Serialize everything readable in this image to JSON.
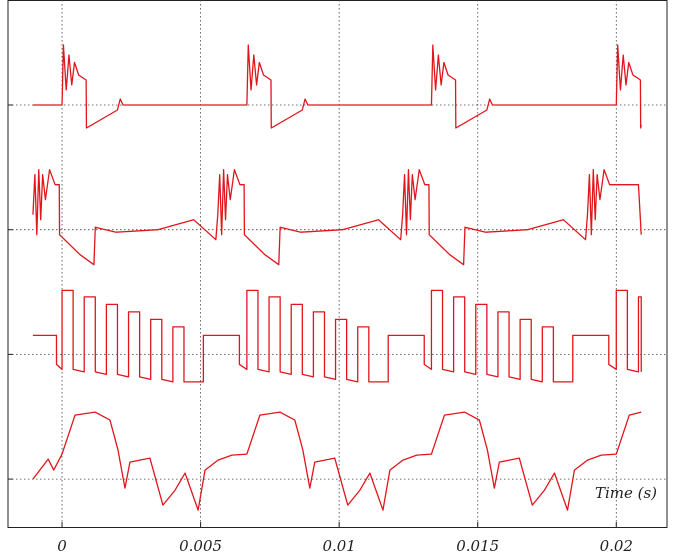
{
  "chart_data": [
    {
      "type": "line",
      "color": "#e0161c",
      "xlim": [
        -0.00195,
        0.02183
      ],
      "ylim": [
        -1.25,
        1.25
      ],
      "yticks": [
        0
      ],
      "grid": true,
      "x": [
        -0.00105,
        0,
        5e-05,
        0.00015,
        0.00025,
        0.00035,
        0.00045,
        0.0006,
        0.00087,
        0.00088,
        0.002,
        0.0021,
        0.0022,
        0.00667,
        0.00672,
        0.00682,
        0.00692,
        0.00702,
        0.00712,
        0.00727,
        0.00754,
        0.00755,
        0.00867,
        0.00877,
        0.00887,
        0.01333,
        0.01338,
        0.01348,
        0.01358,
        0.01368,
        0.01378,
        0.01393,
        0.0142,
        0.01421,
        0.01533,
        0.01543,
        0.01553,
        0.02,
        0.02005,
        0.02015,
        0.02025,
        0.02035,
        0.02045,
        0.0206,
        0.02087,
        0.02088,
        0.0209
      ],
      "values": [
        0,
        0,
        1.2,
        0.3,
        1.0,
        0.4,
        0.85,
        0.6,
        0.5,
        -0.46,
        -0.1,
        0.12,
        0,
        0,
        1.2,
        0.3,
        1.0,
        0.4,
        0.85,
        0.6,
        0.5,
        -0.46,
        -0.1,
        0.12,
        0,
        0,
        1.2,
        0.3,
        1.0,
        0.4,
        0.85,
        0.6,
        0.5,
        -0.46,
        -0.1,
        0.12,
        0,
        0,
        1.2,
        0.3,
        1.0,
        0.4,
        0.85,
        0.6,
        0.5,
        -0.46,
        -0.4
      ]
    },
    {
      "type": "line",
      "color": "#e0161c",
      "xlim": [
        -0.00195,
        0.02183
      ],
      "ylim": [
        -1.25,
        1.25
      ],
      "yticks": [
        0
      ],
      "grid": true,
      "x": [
        -0.00105,
        -0.00098,
        -0.00091,
        -0.00084,
        -0.00077,
        -0.0007,
        -0.0006,
        -0.00045,
        -0.00025,
        -0.0001,
        -9e-05,
        0.00065,
        0.00115,
        0.0012,
        0.00195,
        0.00345,
        0.00475,
        0.00555,
        0.00562,
        0.00569,
        0.00576,
        0.00583,
        0.0059,
        0.00597,
        0.00607,
        0.00622,
        0.00642,
        0.00657,
        0.00658,
        0.00732,
        0.00782,
        0.00787,
        0.00862,
        0.01012,
        0.01142,
        0.01222,
        0.01229,
        0.01236,
        0.01243,
        0.0125,
        0.01257,
        0.01264,
        0.01274,
        0.01289,
        0.01309,
        0.01324,
        0.01325,
        0.01399,
        0.01449,
        0.01454,
        0.01529,
        0.01679,
        0.01809,
        0.01889,
        0.01896,
        0.01903,
        0.0191,
        0.01917,
        0.01924,
        0.01931,
        0.01941,
        0.01956,
        0.01976,
        0.01991,
        0.0208,
        0.0209
      ],
      "values": [
        0.3,
        1.1,
        -0.1,
        1.2,
        0.2,
        1.1,
        0.6,
        1.2,
        0.9,
        0.9,
        -0.1,
        -0.5,
        -0.7,
        0.05,
        -0.05,
        0,
        0.2,
        -0.2,
        0.3,
        1.1,
        -0.1,
        1.2,
        0.2,
        1.1,
        0.6,
        1.2,
        0.9,
        0.9,
        -0.1,
        -0.5,
        -0.7,
        0.05,
        -0.05,
        0,
        0.2,
        -0.2,
        0.3,
        1.1,
        -0.1,
        1.2,
        0.2,
        1.1,
        0.6,
        1.2,
        0.9,
        0.9,
        -0.1,
        -0.5,
        -0.7,
        0.05,
        -0.05,
        0,
        0.2,
        -0.2,
        0.3,
        1.1,
        -0.1,
        1.2,
        0.2,
        1.1,
        0.6,
        1.2,
        0.9,
        0.9,
        0.9,
        -0.1
      ]
    },
    {
      "type": "line",
      "color": "#e0161c",
      "xlim": [
        -0.00195,
        0.02183
      ],
      "ylim": [
        -1.25,
        1.25
      ],
      "yticks": [
        0
      ],
      "grid": true,
      "x": [
        -0.00105,
        -0.0002,
        -0.0002,
        0,
        0,
        0.0004,
        0.0004,
        0.0008,
        0.0008,
        0.0012,
        0.0012,
        0.0016,
        0.0016,
        0.002,
        0.002,
        0.0024,
        0.0024,
        0.0028,
        0.0028,
        0.0032,
        0.0032,
        0.0036,
        0.0036,
        0.004,
        0.004,
        0.0044,
        0.0044,
        0.0051,
        0.0051,
        0.0064,
        0.0064,
        0.00667,
        0.00667,
        0.00707,
        0.00707,
        0.00747,
        0.00747,
        0.00787,
        0.00787,
        0.00827,
        0.00827,
        0.00867,
        0.00867,
        0.00907,
        0.00907,
        0.00947,
        0.00947,
        0.00987,
        0.00987,
        0.01027,
        0.01027,
        0.01067,
        0.01067,
        0.01107,
        0.01107,
        0.01177,
        0.01177,
        0.01307,
        0.01307,
        0.01333,
        0.01333,
        0.01373,
        0.01373,
        0.01413,
        0.01413,
        0.01453,
        0.01453,
        0.01493,
        0.01493,
        0.01533,
        0.01533,
        0.01573,
        0.01573,
        0.01613,
        0.01613,
        0.01653,
        0.01653,
        0.01693,
        0.01693,
        0.01733,
        0.01733,
        0.01773,
        0.01773,
        0.01843,
        0.01843,
        0.01973,
        0.01973,
        0.02,
        0.02,
        0.0204,
        0.0204,
        0.0208,
        0.0208,
        0.0209,
        0.0209
      ],
      "values": [
        0.38,
        0.38,
        -0.2,
        -0.3,
        1.28,
        1.28,
        -0.3,
        -0.35,
        1.15,
        1.15,
        -0.35,
        -0.4,
        1.0,
        1.0,
        -0.4,
        -0.45,
        0.85,
        0.85,
        -0.45,
        -0.5,
        0.7,
        0.7,
        -0.5,
        -0.55,
        0.55,
        0.55,
        -0.55,
        -0.55,
        0.38,
        0.38,
        -0.2,
        -0.3,
        1.28,
        1.28,
        -0.3,
        -0.35,
        1.15,
        1.15,
        -0.35,
        -0.4,
        1.0,
        1.0,
        -0.4,
        -0.45,
        0.85,
        0.85,
        -0.45,
        -0.5,
        0.7,
        0.7,
        -0.5,
        -0.55,
        0.55,
        0.55,
        -0.55,
        -0.55,
        0.38,
        0.38,
        -0.2,
        -0.3,
        1.28,
        1.28,
        -0.3,
        -0.35,
        1.15,
        1.15,
        -0.35,
        -0.4,
        1.0,
        1.0,
        -0.4,
        -0.45,
        0.85,
        0.85,
        -0.45,
        -0.5,
        0.7,
        0.7,
        -0.5,
        -0.55,
        0.55,
        0.55,
        -0.55,
        -0.55,
        0.38,
        0.38,
        -0.2,
        -0.3,
        1.28,
        1.28,
        -0.3,
        -0.35,
        1.15,
        1.15,
        -0.35
      ]
    },
    {
      "type": "line",
      "color": "#e0161c",
      "xlim": [
        -0.00195,
        0.02183
      ],
      "ylim": [
        -1.25,
        1.25
      ],
      "yticks": [
        0
      ],
      "grid": true,
      "xlabel": "Time (s)",
      "xticks": [
        0,
        0.005,
        0.01,
        0.015,
        0.02
      ],
      "x": [
        -0.00105,
        -0.0005,
        -0.0003,
        0,
        0.00047,
        0.00119,
        0.00173,
        0.00202,
        0.00227,
        0.00245,
        0.00317,
        0.00364,
        0.00408,
        0.00444,
        0.00491,
        0.00516,
        0.00563,
        0.00613,
        0.00667,
        0.00714,
        0.00786,
        0.0084,
        0.00869,
        0.00894,
        0.00912,
        0.00984,
        0.01031,
        0.01075,
        0.01111,
        0.01158,
        0.01183,
        0.0123,
        0.0128,
        0.01333,
        0.0138,
        0.01452,
        0.01506,
        0.01535,
        0.0156,
        0.01578,
        0.0165,
        0.01697,
        0.01741,
        0.01777,
        0.01824,
        0.01849,
        0.01896,
        0.01946,
        0.02,
        0.02047,
        0.0209
      ],
      "values": [
        0,
        0.4,
        0.18,
        0.5,
        1.28,
        1.34,
        1.18,
        0.58,
        -0.18,
        0.34,
        0.42,
        -0.52,
        -0.22,
        0.12,
        -0.62,
        0.18,
        0.38,
        0.48,
        0.5,
        1.28,
        1.34,
        1.18,
        0.58,
        -0.18,
        0.34,
        0.42,
        -0.52,
        -0.22,
        0.12,
        -0.62,
        0.18,
        0.38,
        0.48,
        0.5,
        1.28,
        1.34,
        1.18,
        0.58,
        -0.18,
        0.34,
        0.42,
        -0.52,
        -0.22,
        0.12,
        -0.62,
        0.18,
        0.38,
        0.48,
        0.5,
        1.28,
        1.34
      ]
    }
  ]
}
